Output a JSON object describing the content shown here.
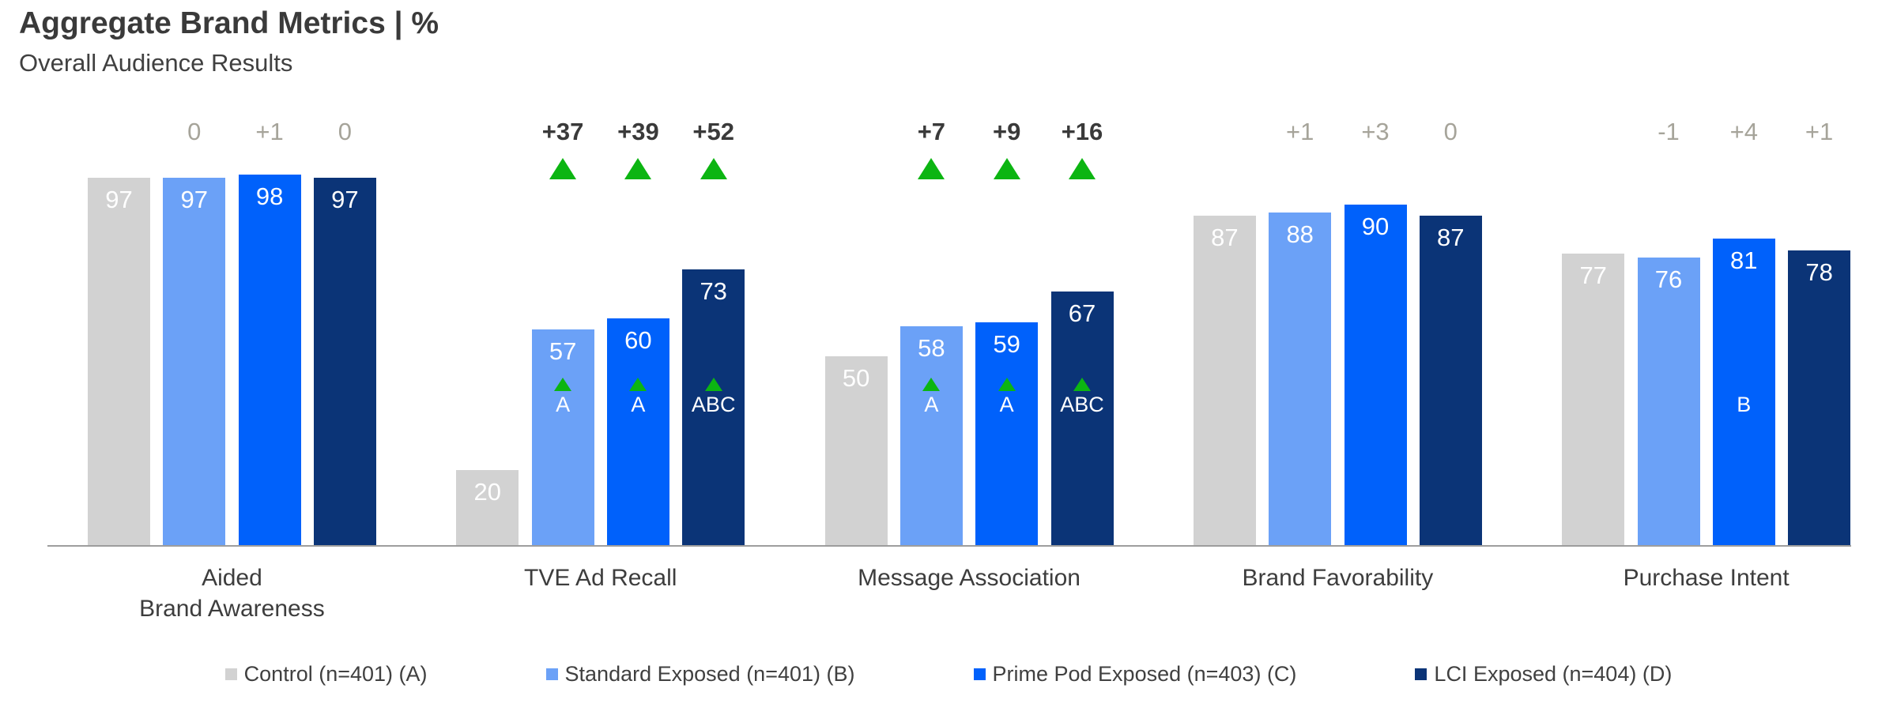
{
  "chart_data": {
    "type": "bar",
    "title": "Aggregate Brand Metrics | %",
    "subtitle": "Overall Audience Results",
    "unit": "%",
    "ylim": [
      0,
      100
    ],
    "grid": false,
    "legend_position": "bottom",
    "categories": [
      "Aided Brand Awareness",
      "TVE Ad Recall",
      "Message Association",
      "Brand Favorability",
      "Purchase Intent"
    ],
    "category_label_lines": [
      [
        "Aided",
        "Brand Awareness"
      ],
      [
        "TVE Ad Recall"
      ],
      [
        "Message Association"
      ],
      [
        "Brand Favorability"
      ],
      [
        "Purchase Intent"
      ]
    ],
    "series": [
      {
        "name": "Control (n=401) (A)",
        "letter": "A",
        "color": "#d2d2d2",
        "values": [
          97,
          20,
          50,
          87,
          77
        ]
      },
      {
        "name": "Standard Exposed (n=401) (B)",
        "letter": "B",
        "color": "#6ba1f7",
        "values": [
          97,
          57,
          58,
          88,
          76
        ],
        "deltas_vs_control": [
          "0",
          "+37",
          "+7",
          "+1",
          "-1"
        ],
        "delta_significant": [
          false,
          true,
          true,
          false,
          false
        ],
        "sig_letters": [
          "",
          "A",
          "A",
          "",
          ""
        ],
        "sig_triangle": [
          false,
          true,
          true,
          false,
          false
        ]
      },
      {
        "name": "Prime Pod Exposed (n=403) (C)",
        "letter": "C",
        "color": "#0061fb",
        "values": [
          98,
          60,
          59,
          90,
          81
        ],
        "deltas_vs_control": [
          "+1",
          "+39",
          "+9",
          "+3",
          "+4"
        ],
        "delta_significant": [
          false,
          true,
          true,
          false,
          false
        ],
        "sig_letters": [
          "",
          "A",
          "A",
          "",
          "B"
        ],
        "sig_triangle": [
          false,
          true,
          true,
          false,
          false
        ]
      },
      {
        "name": "LCI Exposed (n=404) (D)",
        "letter": "D",
        "color": "#0b3477",
        "values": [
          97,
          73,
          67,
          87,
          78
        ],
        "deltas_vs_control": [
          "0",
          "+52",
          "+16",
          "0",
          "+1"
        ],
        "delta_significant": [
          false,
          true,
          true,
          false,
          false
        ],
        "sig_letters": [
          "",
          "ABC",
          "ABC",
          "",
          ""
        ],
        "sig_triangle": [
          false,
          true,
          true,
          false,
          false
        ]
      }
    ]
  },
  "colors": {
    "significant_marker_green": "#0cb512",
    "delta_significant_text": "#3a3a3a",
    "delta_nonsignificant_text": "#a6a49a",
    "bar_value_text": "#ffffff",
    "axis_line": "#9d9d9d",
    "title_text": "#3a3a3a",
    "body_text": "#404040"
  }
}
